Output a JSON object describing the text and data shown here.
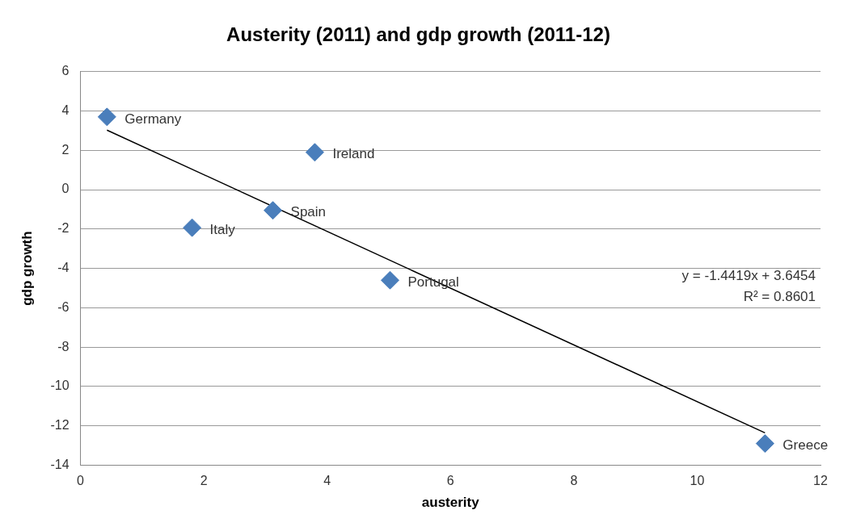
{
  "chart_data": {
    "type": "scatter",
    "title": "Austerity (2011) and gdp growth (2011-12)",
    "xlabel": "austerity",
    "ylabel": "gdp growth",
    "xlim": [
      0,
      12
    ],
    "xticks": [
      0,
      2,
      4,
      6,
      8,
      10,
      12
    ],
    "ylim": [
      -14,
      6
    ],
    "yticks": [
      -14,
      -12,
      -10,
      -8,
      -6,
      -4,
      -2,
      0,
      2,
      4,
      6
    ],
    "grid": "y",
    "legend": false,
    "marker": "diamond",
    "series": [
      {
        "type": "scatter",
        "color": "#4a7ebb",
        "x": [
          0.43,
          3.8,
          3.12,
          1.81,
          5.02,
          11.1
        ],
        "values": [
          3.7,
          1.9,
          -1.05,
          -1.93,
          -4.6,
          -12.9
        ]
      },
      {
        "type": "line",
        "color": "#000000",
        "marker": "none",
        "x": [
          0.43,
          11.1
        ],
        "values": [
          3.03,
          -12.36
        ]
      }
    ],
    "annotations": [
      {
        "text": "Germany",
        "x": 0.43,
        "y": 3.7
      },
      {
        "text": "Ireland",
        "x": 3.8,
        "y": 1.9
      },
      {
        "text": "Spain",
        "x": 3.12,
        "y": -1.05
      },
      {
        "text": "Italy",
        "x": 1.81,
        "y": -1.93
      },
      {
        "text": "Portugal",
        "x": 5.02,
        "y": -4.6
      },
      {
        "text": "Greece",
        "x": 11.1,
        "y": -12.9
      },
      "y = -1.4419x + 3.6454",
      "R² = 0.8601"
    ]
  }
}
